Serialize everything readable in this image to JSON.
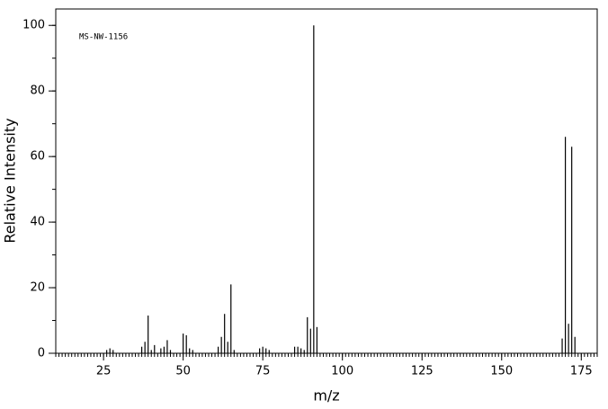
{
  "chart_data": {
    "type": "stem",
    "annotation": "MS-NW-1156",
    "xlabel": "m/z",
    "ylabel": "Relative Intensity",
    "x": [
      26,
      27,
      28,
      37,
      38,
      39,
      40,
      41,
      43,
      44,
      45,
      46,
      50,
      51,
      52,
      53,
      61,
      62,
      63,
      64,
      65,
      66,
      74,
      75,
      76,
      77,
      85,
      86,
      87,
      88,
      89,
      90,
      91,
      92,
      169,
      170,
      171,
      172,
      173
    ],
    "values": [
      1,
      1.5,
      1,
      2,
      3.5,
      11.5,
      1,
      2.5,
      1.5,
      2,
      4,
      1,
      6,
      5.5,
      1.5,
      1,
      2,
      5,
      12,
      3.5,
      21,
      1,
      1.5,
      2,
      1.5,
      1,
      2,
      2,
      1.5,
      1,
      11,
      7.5,
      100,
      8,
      4.5,
      66,
      9,
      63,
      5
    ],
    "color": "#000000",
    "xlim": [
      10,
      180
    ],
    "xticks": [
      25,
      50,
      75,
      100,
      125,
      150,
      175
    ],
    "ylim": [
      0,
      105
    ],
    "yticks": [
      0,
      20,
      40,
      60,
      80,
      100
    ]
  }
}
